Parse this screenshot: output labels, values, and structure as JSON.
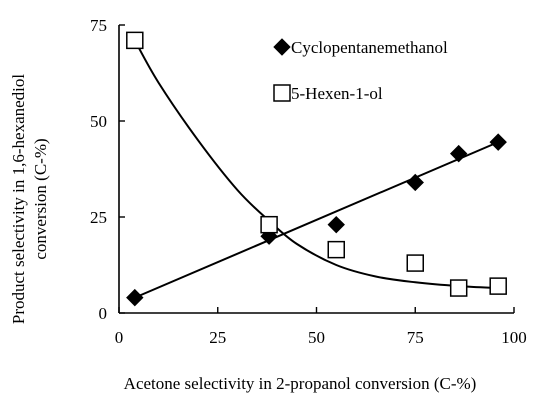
{
  "chart_data": {
    "type": "scatter",
    "xlabel": "Acetone selectivity in 2-propanol conversion (C-%)",
    "ylabel_lines": [
      "Product selectivity in 1,6-hexanediol",
      "conversion (C-%)"
    ],
    "xlim": [
      0,
      100
    ],
    "ylim": [
      0,
      75
    ],
    "x_ticks": [
      "0",
      "25",
      "50",
      "75",
      "100"
    ],
    "y_ticks": [
      "0",
      "25",
      "50",
      "75"
    ],
    "grid": false,
    "legend_position": "top-right",
    "series": [
      {
        "name": "Cyclopentanemethanol",
        "marker": "filled-diamond",
        "color": "#000000",
        "x": [
          4,
          38,
          55,
          75,
          86,
          96
        ],
        "y": [
          4,
          20,
          23,
          34,
          41.5,
          44.5
        ],
        "trend": {
          "kind": "linear",
          "x": [
            4,
            96
          ],
          "y": [
            4,
            44.5
          ]
        }
      },
      {
        "name": "5-Hexen-1-ol",
        "marker": "open-square",
        "color": "#000000",
        "x": [
          4,
          38,
          55,
          75,
          86,
          96
        ],
        "y": [
          71,
          23,
          16.5,
          13,
          6.5,
          7
        ],
        "trend": {
          "kind": "curve",
          "x": [
            4,
            10,
            20,
            30,
            38,
            45,
            55,
            65,
            75,
            86,
            96
          ],
          "y": [
            71,
            60,
            45,
            32,
            24,
            18,
            12.5,
            9.5,
            8,
            7,
            6.5
          ]
        }
      }
    ]
  }
}
